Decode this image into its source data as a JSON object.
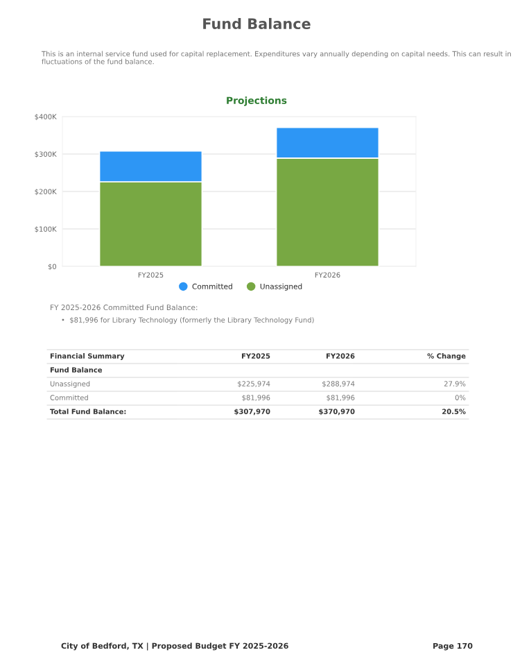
{
  "chart_data": {
    "type": "bar",
    "title": "Fund Balance",
    "subtitle": "This is an internal service fund used for capital replacement. Expenditures vary annually depending on capital needs. This can result in fluctuations of the fund balance.",
    "categories": [
      "FY2025",
      "FY2026"
    ],
    "series": [
      {
        "name": "Unassigned",
        "color": "#78a843",
        "values": [
          225974,
          288974
        ]
      },
      {
        "name": "Committed",
        "color": "#2d96f5",
        "values": [
          81996,
          81996
        ]
      }
    ],
    "stacked": true,
    "ylim": [
      0,
      400000
    ],
    "yticks": [
      {
        "value": 0,
        "label": "$0"
      },
      {
        "value": 100000,
        "label": "$100K"
      },
      {
        "value": 200000,
        "label": "$200K"
      },
      {
        "value": 300000,
        "label": "$300K"
      },
      {
        "value": 400000,
        "label": "$400K"
      }
    ],
    "grid": "y",
    "legend": "bottom",
    "annotations": [
      "Projections",
      "FY 2025-2026 Committed Fund Balance:",
      "•  $81,996 for Library Technology (formerly the Library Technology Fund)",
      "City of Bedford, TX | Proposed Budget FY 2025-2026",
      "Page 170",
      "Financial Summary",
      "FY2025",
      "FY2026",
      "% Change",
      "Fund Balance",
      "Unassigned",
      "$225,974",
      "$288,974",
      "27.9%",
      "Committed",
      "$81,996",
      "$81,996",
      "0%",
      "Total Fund Balance:",
      "$307,970",
      "$370,970",
      "20.5%"
    ]
  }
}
